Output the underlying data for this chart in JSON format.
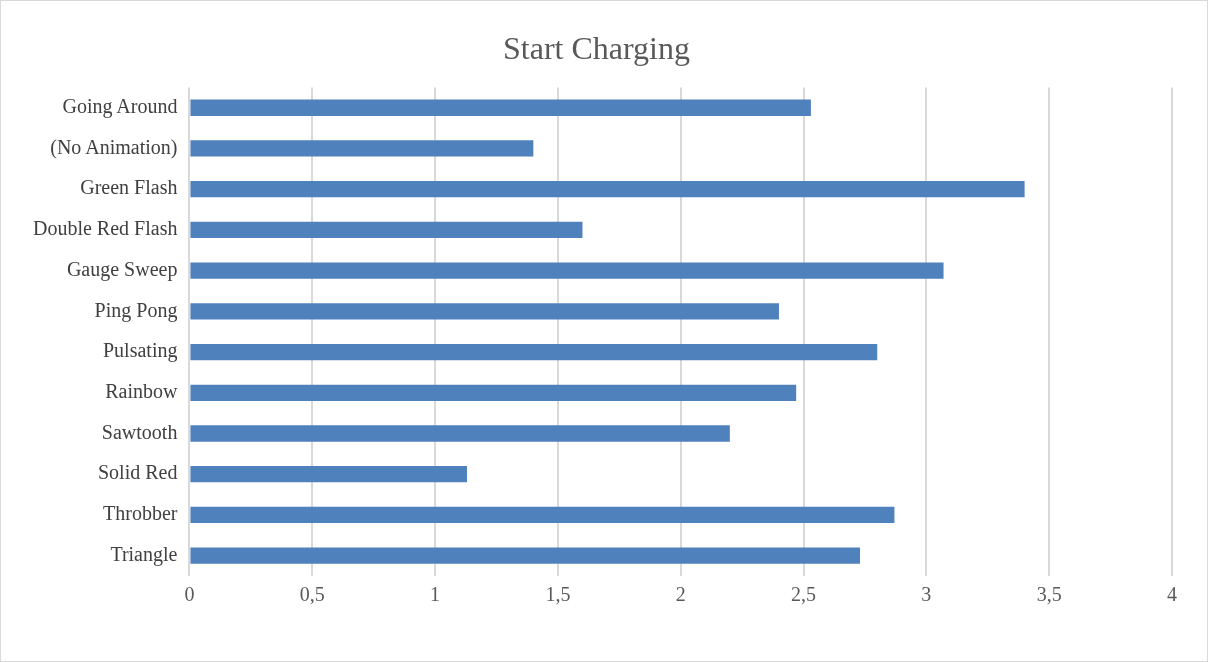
{
  "chart_data": {
    "type": "bar",
    "orientation": "horizontal",
    "title": "Start Charging",
    "categories": [
      "Going Around",
      "(No Animation)",
      "Green Flash",
      "Double Red Flash",
      "Gauge Sweep",
      "Ping Pong",
      "Pulsating",
      "Rainbow",
      "Sawtooth",
      "Solid Red",
      "Throbber",
      "Triangle"
    ],
    "values": [
      2.53,
      1.4,
      3.4,
      1.6,
      3.07,
      2.4,
      2.8,
      2.47,
      2.2,
      1.13,
      2.87,
      2.73
    ],
    "color": "#4f81bd",
    "xlim": [
      0,
      4
    ],
    "xticks": [
      0,
      {
        "value": 0.5,
        "label": "0,5"
      },
      1,
      {
        "value": 1.5,
        "label": "1,5"
      },
      2,
      {
        "value": 2.5,
        "label": "2,5"
      },
      3,
      {
        "value": 3.5,
        "label": "3,5"
      },
      4
    ],
    "grid": "x"
  }
}
